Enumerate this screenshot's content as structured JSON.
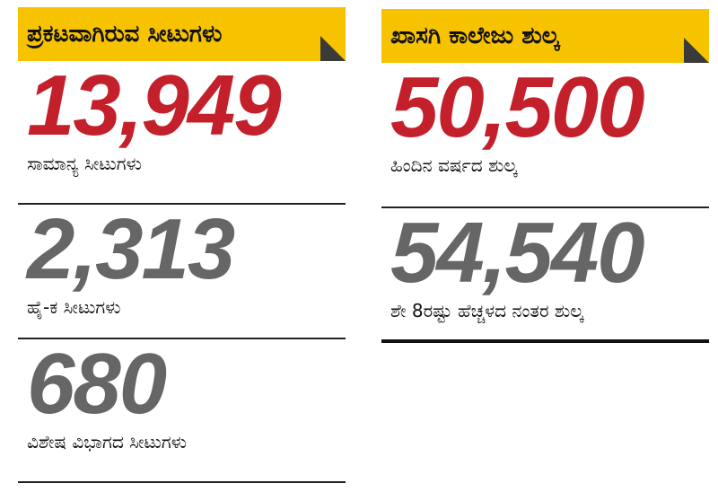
{
  "columns": [
    {
      "header": "ಪ್ರಕಟವಾಗಿರುವ ಸೀಟುಗಳು",
      "items": [
        {
          "number": "13,949",
          "label": "ಸಾಮಾನ್ಯ ಸೀಟುಗಳು"
        },
        {
          "number": "2,313",
          "label": "ಹೈ-ಕ ಸೀಟುಗಳು"
        },
        {
          "number": "680",
          "label": "ವಿಶೇಷ ವಿಭಾಗದ ಸೀಟುಗಳು"
        }
      ]
    },
    {
      "header": "ಖಾಸಗಿ ಕಾಲೇಜು ಶುಲ್ಕ",
      "items": [
        {
          "number": "50,500",
          "label": "ಹಿಂದಿನ ವರ್ಷದ ಶುಲ್ಕ"
        },
        {
          "number": "54,540",
          "label": "ಶೇ 8ರಷ್ಟು ಹೆಚ್ಚಳದ ನಂತರ ಶುಲ್ಕ"
        }
      ]
    }
  ]
}
